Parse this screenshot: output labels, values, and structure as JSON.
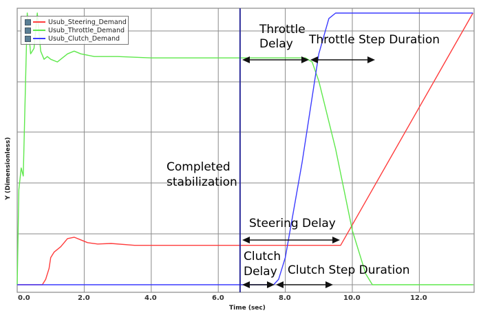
{
  "chart_data": {
    "type": "line",
    "title": "",
    "xlabel": "Time (sec)",
    "ylabel": "Y (Dimensionless)",
    "xlim": [
      0,
      13.6
    ],
    "ylim": [
      -0.03,
      1.02
    ],
    "x_ticks": [
      "0.0",
      "2.0",
      "4.0",
      "6.0",
      "8.0",
      "10.0",
      "12.0"
    ],
    "y_ticks": [],
    "grid": true,
    "legend": {
      "position": "upper-left",
      "entries": [
        "Usub_Steering_Demand",
        "Usub_Throttle_Demand",
        "Usub_Clutch_Demand"
      ]
    },
    "series": [
      {
        "name": "Usub_Steering_Demand",
        "color": "#ff3b3b",
        "x": [
          0,
          0.75,
          0.85,
          0.95,
          1.0,
          1.1,
          1.3,
          1.5,
          1.7,
          1.9,
          2.1,
          2.4,
          2.8,
          3.5,
          5.0,
          6.65,
          9.65,
          13.6
        ],
        "y": [
          0,
          0,
          0.02,
          0.06,
          0.1,
          0.12,
          0.14,
          0.17,
          0.175,
          0.165,
          0.155,
          0.15,
          0.152,
          0.145,
          0.145,
          0.145,
          0.145,
          1.0
        ]
      },
      {
        "name": "Usub_Throttle_Demand",
        "color": "#5de84a",
        "x": [
          0,
          0.05,
          0.12,
          0.18,
          0.22,
          0.3,
          0.4,
          0.5,
          0.6,
          0.7,
          0.8,
          0.9,
          1.0,
          1.2,
          1.5,
          1.7,
          1.9,
          2.3,
          3.0,
          4.0,
          6.65,
          8.6,
          8.8,
          9.0,
          9.5,
          10.0,
          10.4,
          10.6,
          13.6
        ],
        "y": [
          0,
          0.35,
          0.43,
          0.4,
          0.6,
          1.0,
          0.85,
          0.87,
          1.0,
          0.86,
          0.83,
          0.84,
          0.83,
          0.82,
          0.85,
          0.86,
          0.85,
          0.84,
          0.84,
          0.835,
          0.835,
          0.835,
          0.82,
          0.75,
          0.5,
          0.2,
          0.04,
          0.0,
          0.0
        ]
      },
      {
        "name": "Usub_Clutch_Demand",
        "color": "#3a3aff",
        "x": [
          0,
          6.65,
          7.65,
          7.8,
          8.0,
          8.5,
          9.0,
          9.3,
          9.5,
          13.6
        ],
        "y": [
          0,
          0,
          0,
          0.02,
          0.1,
          0.45,
          0.85,
          0.98,
          1.0,
          1.0
        ]
      }
    ],
    "vertical_markers": [
      {
        "x": 6.65,
        "color": "#2a2a9a",
        "label": "Completed stabilization"
      }
    ],
    "annotations": [
      {
        "text": "Completed\nstabilization",
        "x": 4.5,
        "y": 0.45
      },
      {
        "text": "Throttle\nDelay",
        "from": 6.65,
        "to": 8.7,
        "y": 0.835
      },
      {
        "text": "Throttle Step Duration",
        "from": 8.7,
        "to": 10.6,
        "y": 0.835
      },
      {
        "text": "Steering Delay",
        "from": 6.65,
        "to": 9.6,
        "y": 0.17
      },
      {
        "text": "Clutch\nDelay",
        "from": 6.65,
        "to": 7.65,
        "y": 0.0
      },
      {
        "text": "Clutch Step Duration",
        "from": 7.65,
        "to": 9.5,
        "y": 0.0
      }
    ]
  },
  "legend_labels": {
    "steering": "Usub_Steering_Demand",
    "throttle": "Usub_Throttle_Demand",
    "clutch": "Usub_Clutch_Demand"
  },
  "axes": {
    "xlabel": "Time (sec)",
    "ylabel": "Y (Dimensionless)",
    "xticks": [
      "0.0",
      "2.0",
      "4.0",
      "6.0",
      "8.0",
      "10.0",
      "12.0"
    ]
  },
  "annotation_text": {
    "completed_1": "Completed",
    "completed_2": "stabilization",
    "throttle_delay_1": "Throttle",
    "throttle_delay_2": "Delay",
    "throttle_step": "Throttle Step Duration",
    "steering_delay": "Steering Delay",
    "clutch_delay_1": "Clutch",
    "clutch_delay_2": "Delay",
    "clutch_step": "Clutch Step Duration"
  }
}
